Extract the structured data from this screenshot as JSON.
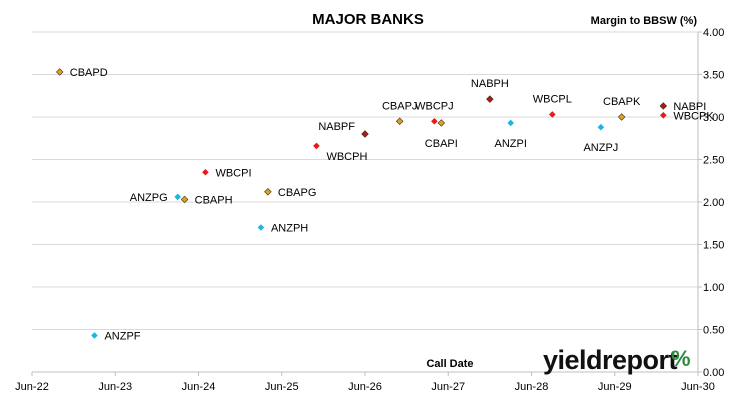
{
  "chart_data": {
    "type": "scatter",
    "title": "MAJOR BANKS",
    "xlabel": "Call Date",
    "ylabel": "Margin to BBSW (%)",
    "xlim": [
      "2022-06",
      "2030-06"
    ],
    "ylim": [
      0,
      4
    ],
    "x_ticks": [
      "Jun-22",
      "Jun-23",
      "Jun-24",
      "Jun-25",
      "Jun-26",
      "Jun-27",
      "Jun-28",
      "Jun-29",
      "Jun-30"
    ],
    "y_ticks": [
      "0.00",
      "0.50",
      "1.00",
      "1.50",
      "2.00",
      "2.50",
      "3.00",
      "3.50",
      "4.00"
    ],
    "grid": "horizontal",
    "colors": {
      "CBA": "#e3a01b",
      "WBC": "#e8191b",
      "NAB": "#b3161d",
      "ANZ": "#19b6e6"
    },
    "points": [
      {
        "label": "CBAPD",
        "x": "2022-10",
        "y": 3.53,
        "bank": "CBA",
        "label_pos": "right"
      },
      {
        "label": "ANZPF",
        "x": "2023-03",
        "y": 0.43,
        "bank": "ANZ",
        "label_pos": "right"
      },
      {
        "label": "ANZPG",
        "x": "2024-03",
        "y": 2.06,
        "bank": "ANZ",
        "label_pos": "left"
      },
      {
        "label": "CBAPH",
        "x": "2024-04",
        "y": 2.03,
        "bank": "CBA",
        "label_pos": "right"
      },
      {
        "label": "WBCPI",
        "x": "2024-07",
        "y": 2.35,
        "bank": "WBC",
        "label_pos": "right"
      },
      {
        "label": "ANZPH",
        "x": "2025-03",
        "y": 1.7,
        "bank": "ANZ",
        "label_pos": "right"
      },
      {
        "label": "CBAPG",
        "x": "2025-04",
        "y": 2.12,
        "bank": "CBA",
        "label_pos": "right"
      },
      {
        "label": "WBCPH",
        "x": "2025-11",
        "y": 2.66,
        "bank": "WBC",
        "label_pos": "right-low"
      },
      {
        "label": "NABPF",
        "x": "2026-06",
        "y": 2.8,
        "bank": "NAB",
        "label_pos": "left"
      },
      {
        "label": "CBAPJ",
        "x": "2026-11",
        "y": 2.95,
        "bank": "CBA",
        "label_pos": "above"
      },
      {
        "label": "WBCPJ",
        "x": "2027-04",
        "y": 2.95,
        "bank": "WBC",
        "label_pos": "above"
      },
      {
        "label": "CBAPI",
        "x": "2027-05",
        "y": 2.93,
        "bank": "CBA",
        "label_pos": "below"
      },
      {
        "label": "NABPH",
        "x": "2027-12",
        "y": 3.21,
        "bank": "NAB",
        "label_pos": "above"
      },
      {
        "label": "ANZPI",
        "x": "2028-03",
        "y": 2.93,
        "bank": "ANZ",
        "label_pos": "below"
      },
      {
        "label": "WBCPL",
        "x": "2028-09",
        "y": 3.03,
        "bank": "WBC",
        "label_pos": "above"
      },
      {
        "label": "ANZPJ",
        "x": "2029-04",
        "y": 2.88,
        "bank": "ANZ",
        "label_pos": "below"
      },
      {
        "label": "CBAPK",
        "x": "2029-07",
        "y": 3.0,
        "bank": "CBA",
        "label_pos": "above"
      },
      {
        "label": "NABPI",
        "x": "2030-01",
        "y": 3.13,
        "bank": "NAB",
        "label_pos": "right"
      },
      {
        "label": "WBCPK",
        "x": "2030-01",
        "y": 3.02,
        "bank": "WBC",
        "label_pos": "right"
      }
    ]
  },
  "brand": {
    "text": "yieldreport",
    "symbol": "%"
  }
}
